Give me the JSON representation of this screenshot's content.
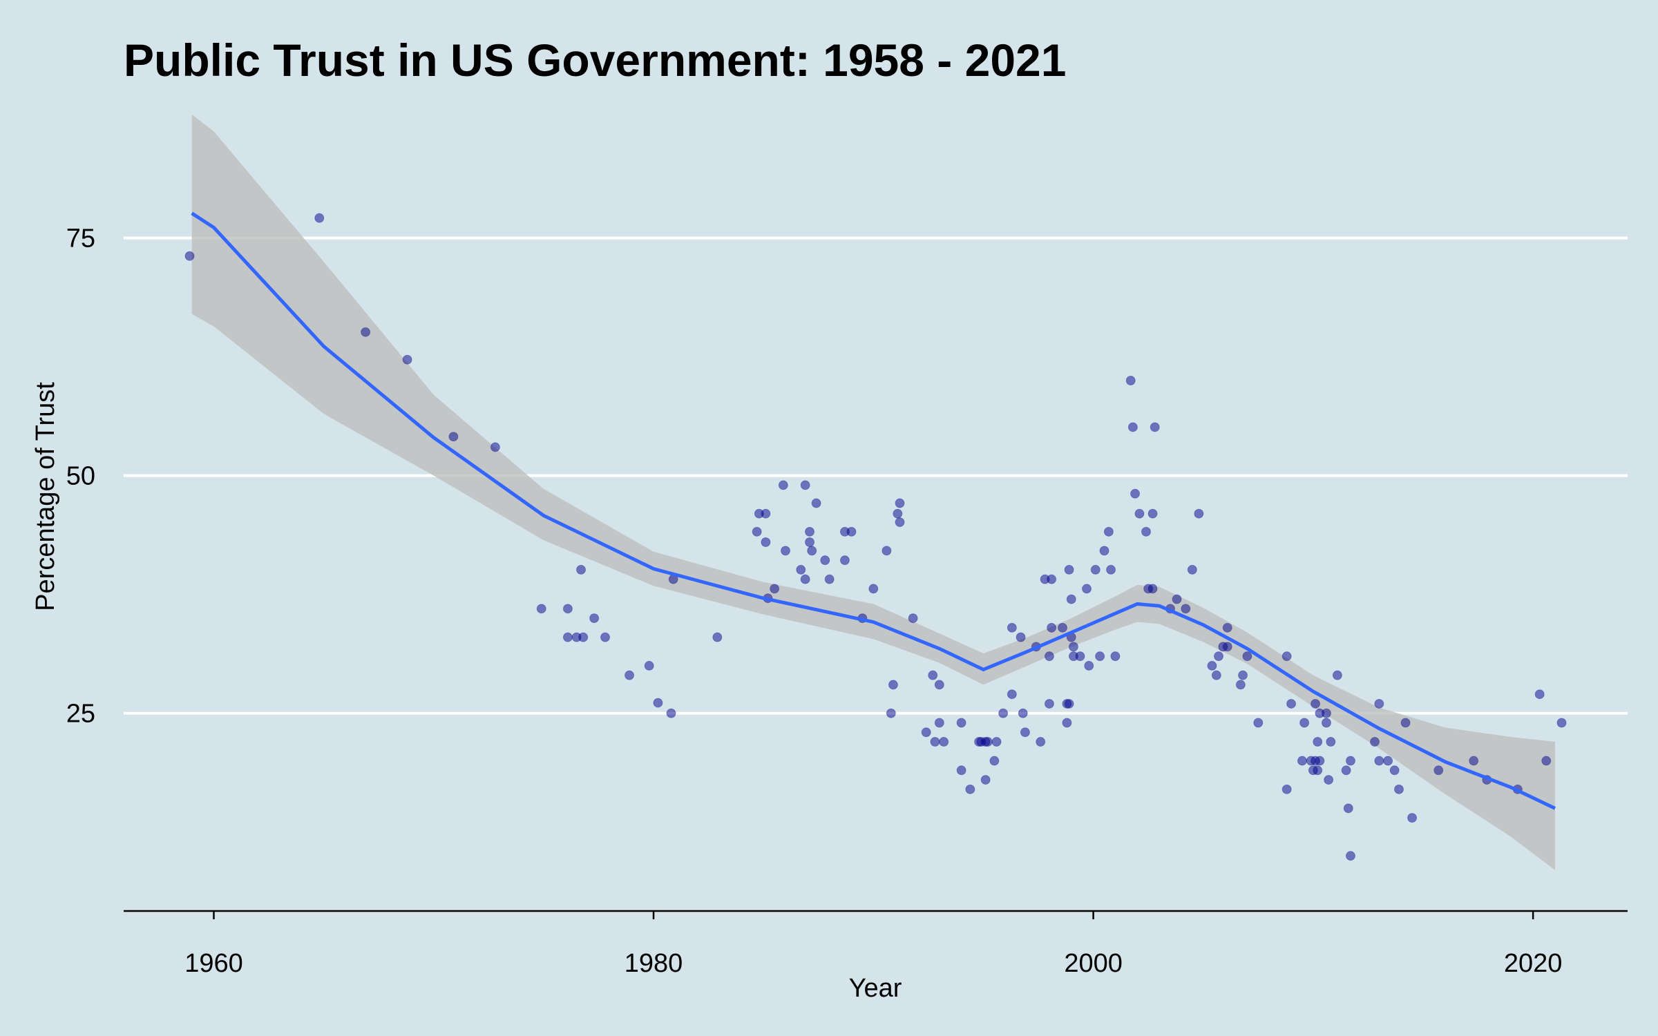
{
  "chart_data": {
    "type": "scatter",
    "title": "Public Trust in US Government: 1958 - 2021",
    "x_label": "Year",
    "y_label": "Percentage of Trust",
    "xlim": [
      1955.9,
      2024.3
    ],
    "ylim": [
      4.2,
      89.5
    ],
    "xticks": [
      1960,
      1980,
      2000,
      2020
    ],
    "yticks": [
      25,
      50,
      75
    ],
    "grid": true,
    "background": "#d5e4eb",
    "points": {
      "color": "#00008b",
      "x": [
        1958.9,
        1964.8,
        1966.9,
        1968.8,
        1970.9,
        1972.8,
        1974.9,
        1976.1,
        1976.1,
        1976.5,
        1976.8,
        1976.7,
        1977.3,
        1977.8,
        1978.9,
        1979.8,
        1980.2,
        1980.8,
        1980.9,
        1982.9,
        1984.7,
        1984.8,
        1985.1,
        1985.1,
        1985.2,
        1985.5,
        1985.9,
        1986.0,
        1986.7,
        1986.9,
        1986.9,
        1987.1,
        1987.1,
        1987.2,
        1987.4,
        1987.8,
        1988.0,
        1988.7,
        1989.0,
        1988.7,
        1989.5,
        1990.0,
        1990.6,
        1990.8,
        1990.9,
        1991.1,
        1991.2,
        1991.2,
        1991.8,
        1992.4,
        1992.7,
        1992.8,
        1993.0,
        1993.0,
        1993.2,
        1994.0,
        1994.0,
        1994.4,
        1994.8,
        1994.9,
        1995.1,
        1995.2,
        1995.1,
        1995.5,
        1995.6,
        1995.9,
        1996.3,
        1996.3,
        1996.7,
        1996.8,
        1996.9,
        1997.4,
        1997.6,
        1997.8,
        1998.1,
        1998.0,
        1998.0,
        1998.1,
        1998.6,
        1998.8,
        1998.9,
        1998.8,
        1998.9,
        1999.0,
        1999.0,
        1999.1,
        1999.1,
        1999.4,
        1999.7,
        1999.8,
        2000.1,
        2000.3,
        2000.5,
        2000.7,
        2000.8,
        2001.0,
        2001.7,
        2001.8,
        2001.9,
        2002.1,
        2002.4,
        2002.5,
        2002.7,
        2002.7,
        2002.8,
        2003.5,
        2003.8,
        2004.2,
        2004.5,
        2004.8,
        2005.4,
        2005.7,
        2005.6,
        2005.9,
        2006.1,
        2006.1,
        2006.7,
        2006.8,
        2007.0,
        2007.5,
        2008.8,
        2008.8,
        2009.0,
        2009.5,
        2009.6,
        2009.9,
        2010.1,
        2010.0,
        2010.2,
        2010.1,
        2010.2,
        2010.3,
        2010.3,
        2010.6,
        2010.6,
        2010.7,
        2010.8,
        2011.1,
        2011.5,
        2011.7,
        2011.6,
        2011.7,
        2012.8,
        2013.0,
        2013.0,
        2013.4,
        2013.7,
        2013.9,
        2014.2,
        2014.5,
        2015.7,
        2017.3,
        2017.9,
        2019.3,
        2020.3,
        2020.6,
        2021.3
      ],
      "y": [
        73.1,
        77.1,
        65.1,
        62.2,
        54.1,
        53.0,
        36.0,
        36.0,
        33.0,
        33.0,
        33.0,
        40.1,
        35.0,
        33.0,
        29.0,
        30.0,
        26.1,
        25.0,
        39.1,
        33.0,
        44.1,
        46.0,
        46.0,
        43.0,
        37.1,
        38.1,
        49.0,
        42.1,
        40.1,
        49.0,
        39.1,
        44.1,
        43.0,
        42.1,
        47.1,
        41.1,
        39.1,
        44.1,
        44.1,
        41.1,
        35.0,
        38.1,
        42.1,
        25.0,
        28.0,
        46.0,
        47.1,
        45.1,
        35.0,
        23.0,
        29.0,
        22.0,
        24.0,
        28.0,
        22.0,
        24.0,
        19.0,
        17.0,
        22.0,
        22.0,
        22.0,
        22.0,
        18.0,
        20.0,
        22.0,
        25.0,
        27.0,
        34.0,
        33.0,
        25.0,
        23.0,
        32.0,
        22.0,
        39.1,
        39.1,
        31.0,
        26.0,
        34.0,
        34.0,
        26.0,
        26.0,
        24.0,
        40.1,
        37.0,
        33.0,
        32.0,
        31.0,
        31.0,
        38.1,
        30.0,
        40.1,
        31.0,
        42.1,
        44.1,
        40.1,
        31.0,
        60.0,
        55.1,
        48.1,
        46.0,
        44.1,
        38.1,
        38.1,
        46.0,
        55.1,
        36.0,
        37.0,
        36.0,
        40.1,
        46.0,
        30.0,
        31.0,
        29.0,
        32.0,
        32.0,
        34.0,
        28.0,
        29.0,
        31.0,
        24.0,
        31.0,
        17.0,
        26.0,
        20.0,
        24.0,
        20.0,
        20.0,
        19.0,
        19.0,
        26.0,
        22.0,
        25.0,
        20.0,
        25.0,
        24.0,
        18.0,
        22.0,
        29.0,
        19.0,
        20.0,
        15.0,
        10.0,
        22.0,
        26.0,
        20.0,
        20.0,
        19.0,
        17.0,
        24.0,
        14.0,
        19.0,
        20.0,
        18.0,
        17.0,
        27.0,
        20.0,
        24.0
      ]
    },
    "smooth": {
      "color": "#3366ff",
      "band_color": "#bebebe",
      "x": [
        1959,
        1960,
        1965,
        1970,
        1975,
        1980,
        1985,
        1990,
        1993,
        1995,
        1997,
        1999,
        2001,
        2002,
        2003,
        2005,
        2007,
        2010,
        2013,
        2016,
        2019,
        2021
      ],
      "values": [
        77.6,
        76.1,
        63.6,
        54.0,
        45.8,
        40.2,
        37.1,
        34.6,
        31.8,
        29.6,
        31.5,
        33.5,
        35.5,
        36.5,
        36.3,
        34.3,
        31.8,
        27.3,
        23.4,
        19.9,
        17.2,
        15.0
      ],
      "upper": [
        88.0,
        86.2,
        72.5,
        58.5,
        48.6,
        42.0,
        38.8,
        36.5,
        33.4,
        31.3,
        33.0,
        35.0,
        37.3,
        38.5,
        38.3,
        36.1,
        33.5,
        29.0,
        25.6,
        23.5,
        22.5,
        22.0
      ],
      "lower": [
        67.0,
        65.7,
        56.5,
        50.0,
        43.2,
        38.4,
        35.4,
        32.8,
        30.3,
        28.0,
        30.0,
        32.0,
        33.8,
        34.6,
        34.4,
        32.5,
        30.2,
        25.7,
        21.3,
        16.5,
        12.0,
        8.5
      ]
    }
  }
}
